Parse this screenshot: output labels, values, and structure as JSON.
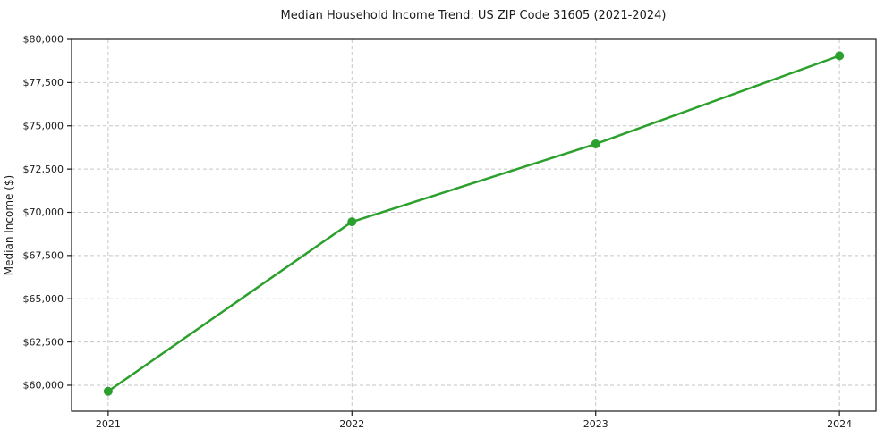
{
  "figure": {
    "background": "#ffffff"
  },
  "chart_data": {
    "type": "line",
    "title": "Median Household Income Trend: US ZIP Code 31605 (2021-2024)",
    "xlabel": "",
    "ylabel": "Median Income ($)",
    "x": [
      2021,
      2022,
      2023,
      2024
    ],
    "series": [
      {
        "name": "median-household-income",
        "values": [
          59650,
          69450,
          73950,
          79050
        ],
        "color": "#2ca02c",
        "marker": "circle",
        "marker_radius": 5,
        "line_width": 2.5
      }
    ],
    "xticks": {
      "values": [
        2021,
        2022,
        2023,
        2024
      ],
      "labels": [
        "2021",
        "2022",
        "2023",
        "2024"
      ]
    },
    "yticks": {
      "values": [
        60000,
        62500,
        65000,
        67500,
        70000,
        72500,
        75000,
        77500,
        80000
      ],
      "labels": [
        "$60,000",
        "$62,500",
        "$65,000",
        "$67,500",
        "$70,000",
        "$72,500",
        "$75,000",
        "$77,500",
        "$80,000"
      ]
    },
    "xlim": [
      2020.85,
      2024.15
    ],
    "ylim": [
      58500,
      80000
    ],
    "grid": true,
    "grid_style": "dashed",
    "legend": "none",
    "colors": {
      "grid": "#c6c6c6",
      "spine": "#1a1a1a",
      "text": "#1a1a1a",
      "background": "#ffffff"
    }
  }
}
